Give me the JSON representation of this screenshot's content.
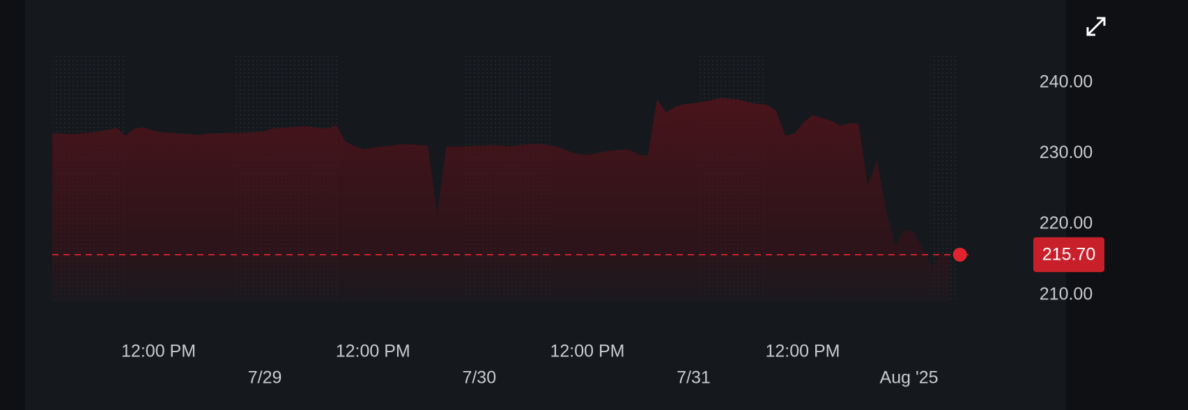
{
  "chart_data": {
    "type": "line",
    "color": "#e0242f",
    "values": [
      232.8,
      232.8,
      232.7,
      232.8,
      232.9,
      233.1,
      233.3,
      233.6,
      232.5,
      233.5,
      233.7,
      233.2,
      233.0,
      232.9,
      232.8,
      232.7,
      232.6,
      232.8,
      232.8,
      232.9,
      232.9,
      232.9,
      233.0,
      233.1,
      233.5,
      233.6,
      233.7,
      233.8,
      233.8,
      233.6,
      233.5,
      234.0,
      231.7,
      231.0,
      230.6,
      230.8,
      231.0,
      231.1,
      231.3,
      231.3,
      231.2,
      231.1,
      221.4,
      231.0,
      231.0,
      231.0,
      231.1,
      231.1,
      231.2,
      231.1,
      231.0,
      231.2,
      231.3,
      231.4,
      231.2,
      231.0,
      230.5,
      230.0,
      229.8,
      229.9,
      230.2,
      230.4,
      230.5,
      230.5,
      229.8,
      229.7,
      237.6,
      235.8,
      236.6,
      237.0,
      237.1,
      237.3,
      237.5,
      237.9,
      237.7,
      237.6,
      237.2,
      237.0,
      236.9,
      236.0,
      232.5,
      232.8,
      234.4,
      235.4,
      235.0,
      234.6,
      233.9,
      234.3,
      234.2,
      225.5,
      229.0,
      222.0,
      217.0,
      219.2,
      219.0,
      216.5,
      214.0,
      215.9,
      215.7
    ],
    "xlim": [
      0,
      100
    ],
    "xticks": [
      {
        "value": 11.6,
        "label": "12:00 PM"
      },
      {
        "value": 35,
        "label": "12:00 PM"
      },
      {
        "value": 58.4,
        "label": "12:00 PM"
      },
      {
        "value": 81.9,
        "label": "12:00 PM"
      }
    ],
    "date_ticks": [
      {
        "value": 23.2,
        "label": "7/29"
      },
      {
        "value": 46.6,
        "label": "7/30"
      },
      {
        "value": 70.0,
        "label": "7/31"
      },
      {
        "value": 93.5,
        "label": "Aug '25"
      }
    ],
    "ylim": [
      209,
      244
    ],
    "yticks": [
      {
        "value": 210,
        "label": "210.00"
      },
      {
        "value": 220,
        "label": "220.00"
      },
      {
        "value": 230,
        "label": "230.00"
      },
      {
        "value": 240,
        "label": "240.00"
      }
    ],
    "grid": true,
    "last_price": {
      "value": 215.7,
      "label": "215.70"
    }
  }
}
